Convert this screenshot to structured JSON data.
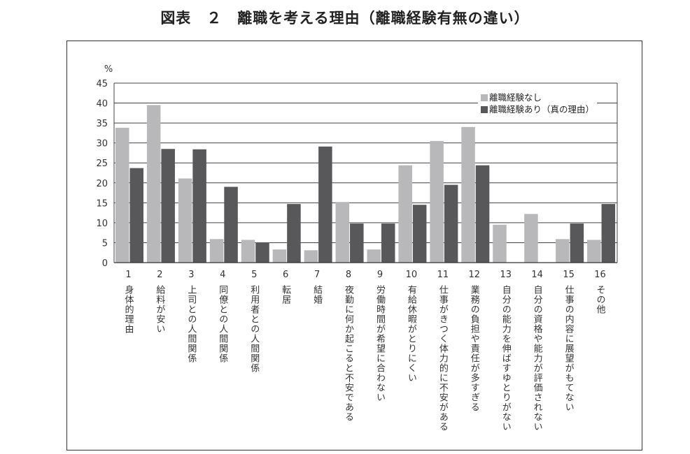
{
  "title": "図表　２　離職を考える理由（離職経験有無の違い）",
  "chart_data": {
    "type": "bar",
    "title": "図表　２　離職を考える理由（離職経験有無の違い）",
    "ylabel": "%",
    "xlabel": "",
    "ylim": [
      0,
      45
    ],
    "yticks": [
      0,
      5,
      10,
      15,
      20,
      25,
      30,
      35,
      40,
      45
    ],
    "grid": true,
    "legend_position": "top-right",
    "categories": [
      "1",
      "2",
      "3",
      "4",
      "5",
      "6",
      "7",
      "8",
      "9",
      "10",
      "11",
      "12",
      "13",
      "14",
      "15",
      "16"
    ],
    "category_labels": [
      "身体的理由",
      "給料が安い",
      "上司との人間関係",
      "同僚との人間関係",
      "利用者との人間関係",
      "転居",
      "結婚",
      "夜勤に何か起こると不安である",
      "労働時間が希望に合わない",
      "有給休暇がとりにくい",
      "仕事がきつく体力的に不安がある",
      "業務の負担や責任が多すぎる",
      "自分の能力を伸ばすゆとりがない",
      "自分の資格や能力が評価されない",
      "仕事の内容に展望がもてない",
      "その他"
    ],
    "series": [
      {
        "name": "離職経験なし",
        "color": "#b8b8ba",
        "values": [
          33.8,
          39.5,
          21.1,
          5.9,
          5.7,
          3.3,
          3.1,
          15.2,
          3.3,
          24.4,
          30.5,
          34.0,
          9.5,
          12.2,
          5.9,
          5.7
        ]
      },
      {
        "name": "離職経験あり（真の理由）",
        "color": "#58585a",
        "values": [
          23.7,
          28.5,
          28.4,
          19.0,
          5.1,
          14.7,
          29.1,
          9.8,
          9.8,
          14.5,
          19.5,
          24.4,
          0,
          0,
          9.8,
          14.7
        ]
      }
    ]
  }
}
